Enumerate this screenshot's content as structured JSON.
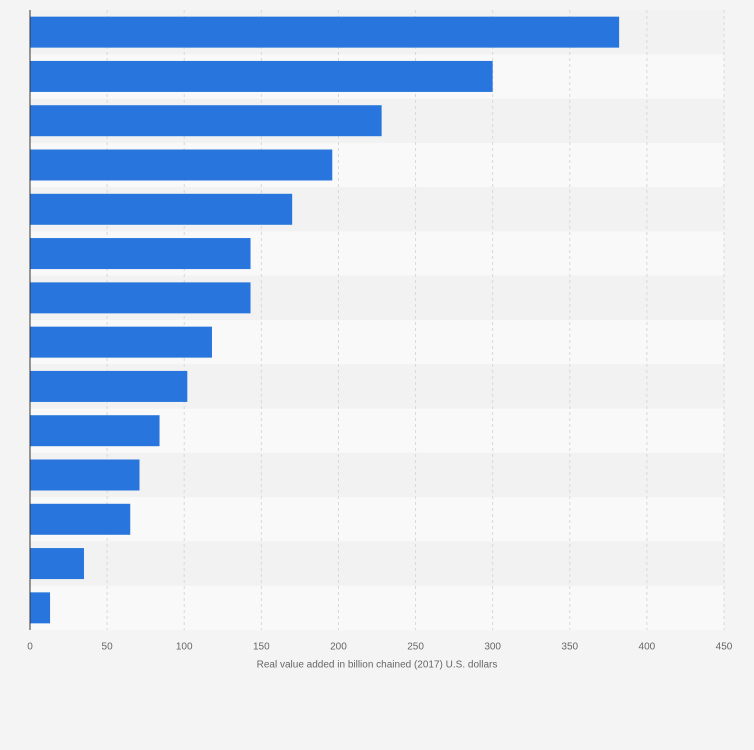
{
  "chart_data": {
    "type": "bar",
    "orientation": "horizontal",
    "x_label": "Real value added in billion chained (2017) U.S. dollars",
    "categories": [
      null,
      null,
      null,
      null,
      null,
      null,
      null,
      null,
      null,
      null,
      null,
      null,
      null,
      null
    ],
    "values": [
      382,
      300,
      228,
      196,
      170,
      143,
      143,
      118,
      102,
      84,
      71,
      65,
      35,
      13
    ],
    "color": "#2876dd",
    "xlim": [
      0,
      450
    ],
    "xticks": [
      0,
      50,
      100,
      150,
      200,
      250,
      300,
      350,
      400,
      450
    ],
    "grid": true
  }
}
